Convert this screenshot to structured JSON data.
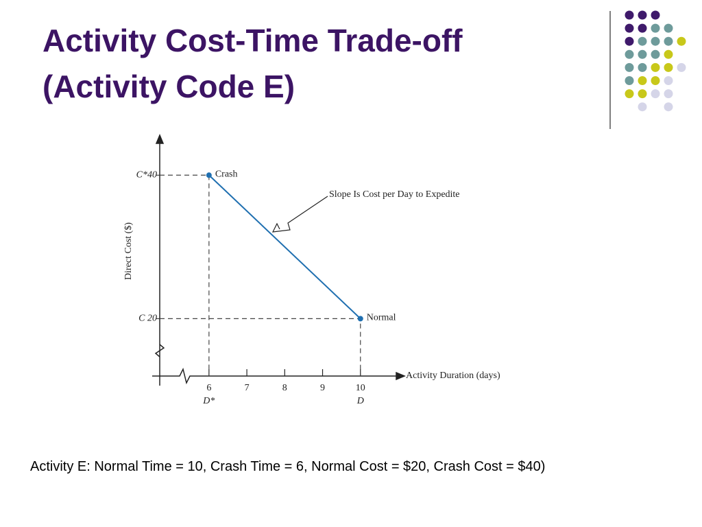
{
  "title": [
    "Activity Cost-Time Trade-off",
    "(Activity Code E)"
  ],
  "chart_data": {
    "type": "line",
    "x": [
      6,
      10
    ],
    "values": [
      40,
      20
    ],
    "color": "#1f6fb0",
    "point_labels": [
      "Crash",
      "Normal"
    ],
    "annotation": "Slope Is Cost per Day to Expedite",
    "x_label": "Activity Duration (days)",
    "y_label": "Direct Cost ($)",
    "xlim": [
      4.5,
      11
    ],
    "xticks": [
      6,
      7,
      8,
      9,
      10
    ],
    "xtick_sublabels": [
      "D*",
      null,
      null,
      null,
      "D"
    ],
    "ylim": [
      12,
      45
    ],
    "yticks": [
      {
        "value": 20,
        "label": "C 20"
      },
      {
        "value": 40,
        "label": "C*40"
      }
    ],
    "guides": true
  },
  "caption": "Activity E: Normal Time = 10, Crash Time = 6, Normal Cost = $20, Crash Cost = $40)"
}
